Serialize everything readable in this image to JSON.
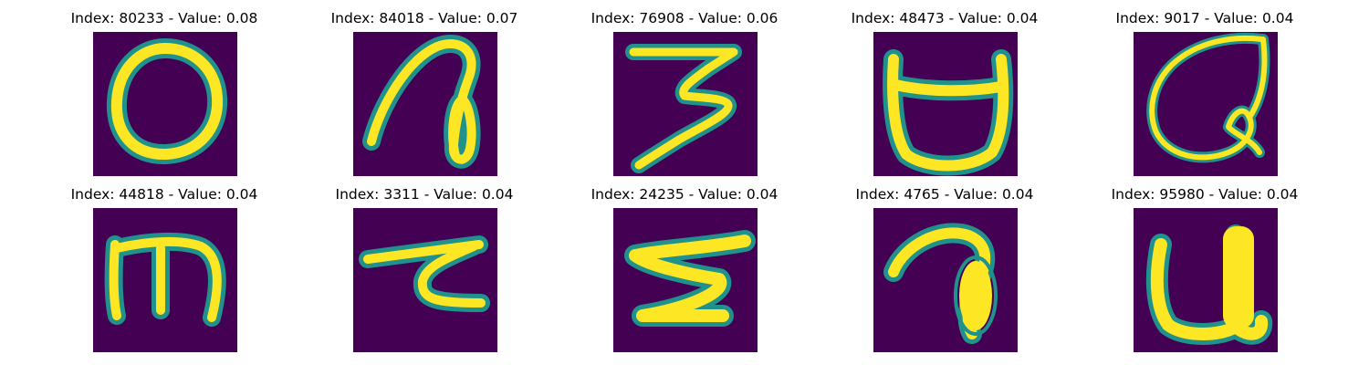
{
  "colors": {
    "background": "#440154",
    "stroke_edge": "#21918c",
    "stroke_core": "#fde725"
  },
  "panels": [
    {
      "title": "Index: 80233 - Value: 0.08",
      "glyph": "ring"
    },
    {
      "title": "Index: 84018 - Value: 0.07",
      "glyph": "hook-loop"
    },
    {
      "title": "Index: 76908 - Value: 0.06",
      "glyph": "three"
    },
    {
      "title": "Index: 48473 - Value: 0.04",
      "glyph": "cup"
    },
    {
      "title": "Index: 9017 - Value: 0.04",
      "glyph": "scribble-loop"
    },
    {
      "title": "Index: 44818 - Value: 0.04",
      "glyph": "m-shape"
    },
    {
      "title": "Index: 3311 - Value: 0.04",
      "glyph": "z-curve"
    },
    {
      "title": "Index: 24235 - Value: 0.04",
      "glyph": "zigzag"
    },
    {
      "title": "Index: 4765 - Value: 0.04",
      "glyph": "hook-blob"
    },
    {
      "title": "Index: 95980 - Value: 0.04",
      "glyph": "u-shape"
    }
  ]
}
